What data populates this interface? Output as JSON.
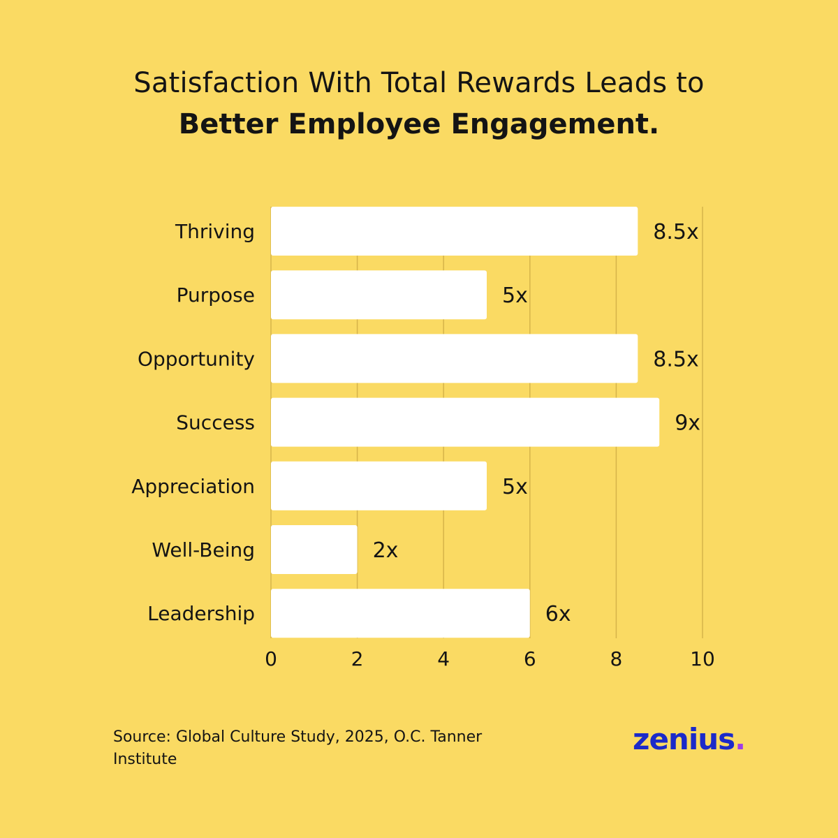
{
  "title": {
    "line1": "Satisfaction With Total Rewards Leads to",
    "line2": "Better Employee Engagement."
  },
  "chart_data": {
    "type": "bar",
    "orientation": "horizontal",
    "title": "Satisfaction With Total Rewards Leads to Better Employee Engagement.",
    "categories": [
      "Thriving",
      "Purpose",
      "Opportunity",
      "Success",
      "Appreciation",
      "Well-Being",
      "Leadership"
    ],
    "values": [
      8.5,
      5,
      8.5,
      9,
      5,
      2,
      6
    ],
    "value_labels": [
      "8.5x",
      "5x",
      "8.5x",
      "9x",
      "5x",
      "2x",
      "6x"
    ],
    "x_ticks": [
      "0",
      "2",
      "4",
      "6",
      "8",
      "10"
    ],
    "xlim": [
      0,
      10
    ],
    "grid": "vertical",
    "colors": {
      "bar": "#FFFFFF",
      "grid": "#D6B44A",
      "background": "#FADA63"
    }
  },
  "source": "Source: Global Culture Study, 2025, O.C. Tanner Institute",
  "logo": {
    "text": "zenius",
    "dot": ".",
    "color": "#1B2AC9",
    "dot_color": "#A03BE8"
  }
}
